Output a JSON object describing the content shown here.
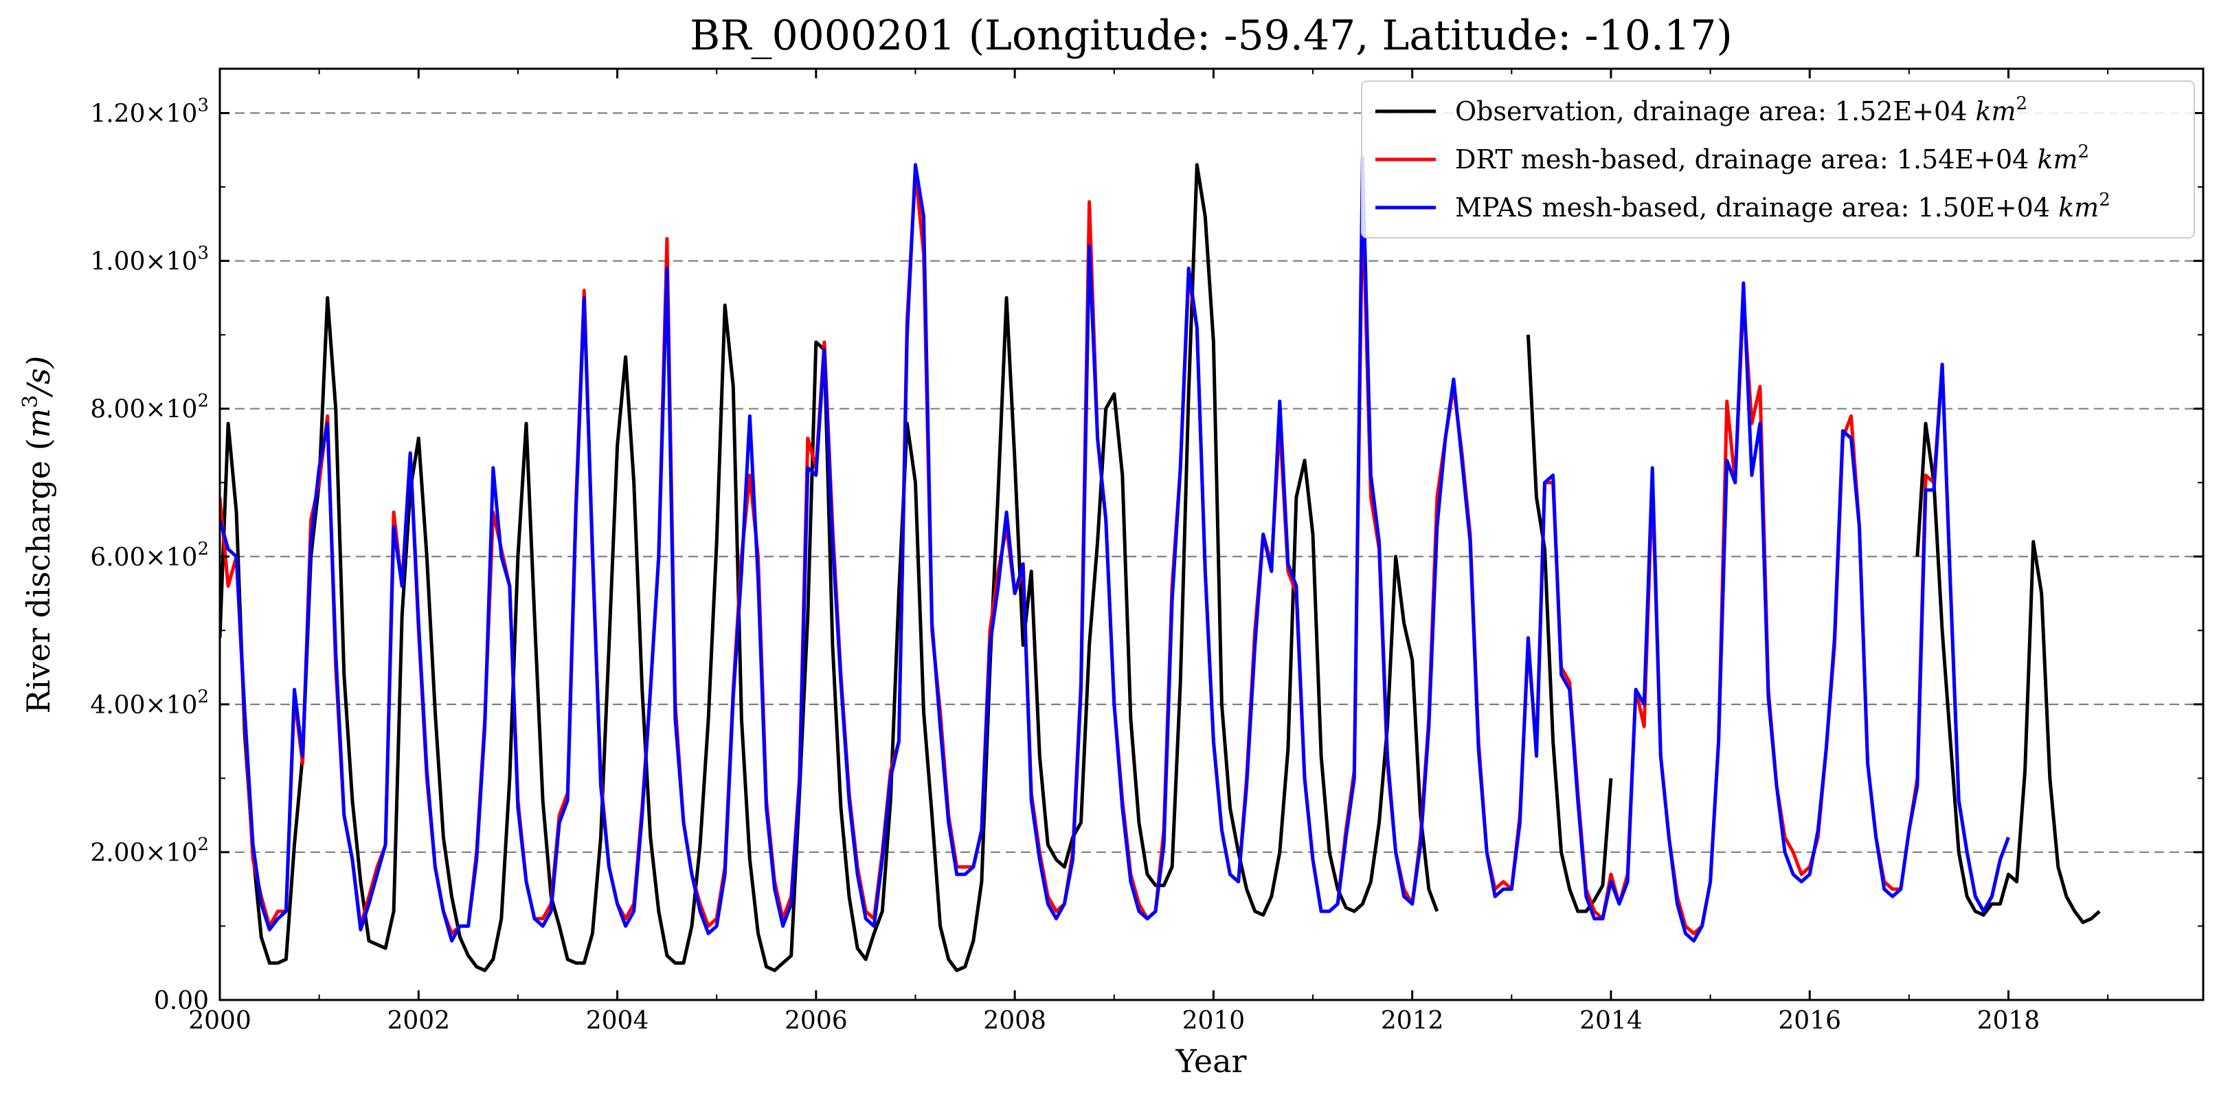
{
  "chart_data": {
    "type": "line",
    "title": "BR_0000201 (Longitude: -59.47, Latitude: -10.17)",
    "xlabel": "Year",
    "ylabel": "River discharge (m³/s)",
    "ylabel_parts": {
      "main": "River discharge (",
      "unit_base": "m",
      "unit_sup": "3",
      "unit_rest": "/s)"
    },
    "xlim": [
      2000.0,
      2019.96
    ],
    "ylim": [
      0,
      1260
    ],
    "x_major_ticks": [
      2000,
      2002,
      2004,
      2006,
      2008,
      2010,
      2012,
      2014,
      2016,
      2018
    ],
    "x_minor_ticks": [
      2001,
      2003,
      2005,
      2007,
      2009,
      2011,
      2013,
      2015,
      2017,
      2019
    ],
    "x_tick_labels": [
      "2000",
      "2002",
      "2004",
      "2006",
      "2008",
      "2010",
      "2012",
      "2014",
      "2016",
      "2018"
    ],
    "y_ticks": [
      0,
      200,
      400,
      600,
      800,
      1000,
      1200
    ],
    "y_tick_labels": [
      {
        "value": 0,
        "mantissa": "0.00",
        "exp": ""
      },
      {
        "value": 200,
        "mantissa": "2.00×10",
        "exp": "2"
      },
      {
        "value": 400,
        "mantissa": "4.00×10",
        "exp": "2"
      },
      {
        "value": 600,
        "mantissa": "6.00×10",
        "exp": "2"
      },
      {
        "value": 800,
        "mantissa": "8.00×10",
        "exp": "2"
      },
      {
        "value": 1000,
        "mantissa": "1.00×10",
        "exp": "3"
      },
      {
        "value": 1200,
        "mantissa": "1.20×10",
        "exp": "3"
      }
    ],
    "grid": "horizontal dashed",
    "legend_position": "top-right",
    "series": [
      {
        "name": "Observation, drainage area: 1.52E+04 km²",
        "label_parts": {
          "text": "Observation, drainage area: 1.52E+04 ",
          "unit": "km",
          "sup": "2"
        },
        "color": "#000000",
        "values": [
          490,
          780,
          660,
          360,
          200,
          85,
          50,
          50,
          55,
          210,
          330,
          600,
          700,
          950,
          800,
          440,
          270,
          160,
          80,
          75,
          70,
          120,
          520,
          690,
          760,
          600,
          390,
          220,
          140,
          85,
          60,
          45,
          40,
          55,
          110,
          300,
          600,
          780,
          520,
          270,
          140,
          100,
          55,
          50,
          50,
          90,
          220,
          480,
          750,
          870,
          700,
          420,
          220,
          120,
          60,
          50,
          50,
          100,
          210,
          380,
          620,
          940,
          830,
          380,
          190,
          90,
          45,
          40,
          50,
          60,
          280,
          520,
          890,
          880,
          480,
          260,
          140,
          70,
          55,
          90,
          120,
          270,
          550,
          780,
          700,
          390,
          250,
          100,
          55,
          40,
          45,
          80,
          160,
          450,
          690,
          950,
          730,
          480,
          580,
          330,
          210,
          190,
          180,
          220,
          240,
          480,
          620,
          800,
          820,
          710,
          380,
          240,
          170,
          155,
          155,
          180,
          430,
          820,
          1130,
          1060,
          890,
          400,
          260,
          200,
          150,
          120,
          115,
          140,
          200,
          340,
          680,
          730,
          630,
          330,
          200,
          150,
          125,
          120,
          130,
          160,
          240,
          370,
          600,
          510,
          460,
          250,
          150,
          120,
          null,
          null,
          null,
          null,
          null,
          null,
          null,
          null,
          null,
          null,
          900,
          680,
          610,
          350,
          200,
          150,
          120,
          120,
          135,
          155,
          300,
          null,
          null,
          null,
          null,
          null,
          null,
          null,
          null,
          null,
          null,
          null,
          null,
          null,
          null,
          null,
          null,
          null,
          null,
          null,
          null,
          null,
          null,
          null,
          null,
          null,
          null,
          null,
          null,
          null,
          null,
          null,
          null,
          null,
          null,
          null,
          null,
          600,
          780,
          700,
          500,
          350,
          200,
          140,
          120,
          115,
          130,
          130,
          170,
          160,
          310,
          620,
          550,
          300,
          180,
          140,
          120,
          105,
          110,
          120,
          null
        ]
      },
      {
        "name": "DRT mesh-based, drainage area: 1.54E+04 km²",
        "label_parts": {
          "text": "DRT mesh-based, drainage area: 1.54E+04 ",
          "unit": "km",
          "sup": "2"
        },
        "color": "#ff0000",
        "values": [
          680,
          560,
          600,
          380,
          190,
          140,
          100,
          120,
          120,
          410,
          320,
          650,
          700,
          790,
          450,
          250,
          190,
          100,
          140,
          180,
          210,
          660,
          560,
          740,
          500,
          300,
          180,
          120,
          90,
          100,
          100,
          200,
          380,
          660,
          610,
          560,
          270,
          160,
          110,
          110,
          130,
          250,
          280,
          670,
          960,
          600,
          300,
          180,
          130,
          110,
          130,
          260,
          420,
          600,
          1030,
          400,
          240,
          170,
          130,
          100,
          110,
          180,
          420,
          600,
          710,
          600,
          270,
          160,
          110,
          140,
          300,
          760,
          720,
          890,
          640,
          440,
          280,
          180,
          120,
          110,
          200,
          310,
          350,
          920,
          1120,
          1010,
          500,
          390,
          250,
          180,
          180,
          180,
          230,
          500,
          580,
          640,
          550,
          580,
          280,
          200,
          140,
          120,
          130,
          200,
          430,
          1080,
          760,
          650,
          400,
          270,
          170,
          130,
          110,
          120,
          230,
          560,
          720,
          980,
          910,
          580,
          350,
          230,
          170,
          160,
          300,
          500,
          630,
          590,
          780,
          580,
          550,
          300,
          190,
          120,
          120,
          130,
          230,
          310,
          1090,
          680,
          610,
          320,
          200,
          150,
          130,
          220,
          380,
          680,
          760,
          830,
          740,
          630,
          350,
          200,
          150,
          160,
          150,
          250,
          480,
          340,
          700,
          700,
          450,
          430,
          280,
          150,
          120,
          110,
          170,
          130,
          170,
          420,
          370,
          700,
          330,
          220,
          140,
          100,
          90,
          100,
          160,
          350,
          810,
          700,
          950,
          780,
          830,
          420,
          290,
          220,
          200,
          170,
          180,
          220,
          340,
          480,
          760,
          790,
          640,
          320,
          220,
          160,
          150,
          150,
          230,
          300,
          710,
          700,
          860,
          560,
          270,
          200,
          140,
          120,
          140,
          190,
          220,
          null
        ]
      },
      {
        "name": "MPAS mesh-based, drainage area: 1.50E+04 km²",
        "label_parts": {
          "text": "MPAS mesh-based, drainage area: 1.50E+04 ",
          "unit": "km",
          "sup": "2"
        },
        "color": "#0000ff",
        "values": [
          650,
          610,
          600,
          390,
          210,
          130,
          95,
          110,
          120,
          420,
          330,
          620,
          720,
          780,
          470,
          250,
          190,
          95,
          130,
          170,
          210,
          640,
          560,
          740,
          510,
          310,
          180,
          120,
          80,
          100,
          100,
          190,
          370,
          720,
          600,
          560,
          260,
          160,
          110,
          100,
          120,
          240,
          270,
          660,
          950,
          610,
          290,
          180,
          130,
          100,
          120,
          250,
          420,
          600,
          990,
          380,
          240,
          170,
          120,
          90,
          100,
          170,
          410,
          580,
          790,
          570,
          260,
          150,
          100,
          130,
          290,
          720,
          710,
          880,
          620,
          430,
          270,
          170,
          110,
          100,
          190,
          300,
          350,
          900,
          1130,
          1060,
          510,
          370,
          240,
          170,
          170,
          180,
          230,
          480,
          560,
          660,
          550,
          590,
          270,
          190,
          130,
          110,
          130,
          190,
          420,
          1020,
          760,
          650,
          400,
          260,
          160,
          120,
          110,
          120,
          210,
          540,
          720,
          990,
          910,
          580,
          350,
          230,
          170,
          160,
          290,
          480,
          630,
          580,
          810,
          590,
          560,
          300,
          190,
          120,
          120,
          130,
          220,
          300,
          1140,
          710,
          620,
          330,
          200,
          140,
          130,
          210,
          370,
          640,
          760,
          840,
          730,
          620,
          340,
          200,
          140,
          150,
          150,
          240,
          490,
          330,
          700,
          710,
          440,
          420,
          270,
          140,
          110,
          110,
          160,
          130,
          160,
          420,
          400,
          720,
          330,
          220,
          130,
          90,
          80,
          100,
          160,
          350,
          730,
          700,
          970,
          710,
          780,
          410,
          290,
          200,
          170,
          160,
          170,
          230,
          340,
          490,
          770,
          760,
          640,
          320,
          220,
          150,
          140,
          150,
          230,
          290,
          690,
          690,
          860,
          560,
          270,
          200,
          140,
          120,
          140,
          190,
          220,
          null
        ]
      }
    ]
  }
}
